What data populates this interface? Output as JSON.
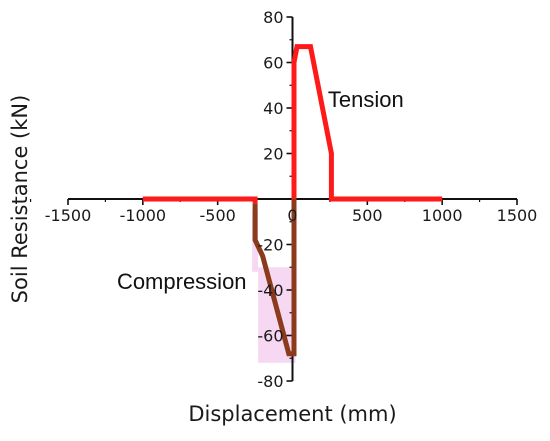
{
  "chart_data": {
    "type": "line",
    "title": "",
    "xlabel": "Displacement (mm)",
    "ylabel": "Soil Resistance (kN)",
    "xlim": [
      -1500,
      1500
    ],
    "ylim": [
      -80,
      80
    ],
    "x_ticks": [
      -1500,
      -1000,
      -500,
      0,
      500,
      1000,
      1500
    ],
    "y_ticks": [
      -80,
      -60,
      -40,
      -20,
      20,
      40,
      60,
      80
    ],
    "x_tick_labels": [
      "-1500",
      "-1000",
      "-500",
      "0",
      "500",
      "1000",
      "1500"
    ],
    "y_tick_labels": [
      "-80",
      "-60",
      "-40",
      "-20",
      "20",
      "40",
      "60",
      "80"
    ],
    "grid": false,
    "axes_through_origin": true,
    "series": [
      {
        "color": "#ff1a1a",
        "x": [
          -1000,
          -250,
          -250,
          -250
        ],
        "y": [
          0,
          0,
          -2,
          -2
        ]
      },
      {
        "color": "#8b3a1c",
        "x": [
          -250,
          -250,
          -200,
          -25,
          10,
          10
        ],
        "y": [
          -2,
          -18,
          -25,
          -68,
          -68,
          0
        ]
      },
      {
        "color": "#ff1a1a",
        "x": [
          10,
          10,
          30,
          120,
          260,
          260,
          1000
        ],
        "y": [
          0,
          60,
          67,
          67,
          20,
          0,
          0
        ]
      }
    ],
    "annotations": [
      {
        "text": "Tension",
        "x": 490,
        "y": 44
      },
      {
        "text": "Compression",
        "x": -740,
        "y": -36
      }
    ],
    "highlight_color": "#f3c8ee"
  }
}
